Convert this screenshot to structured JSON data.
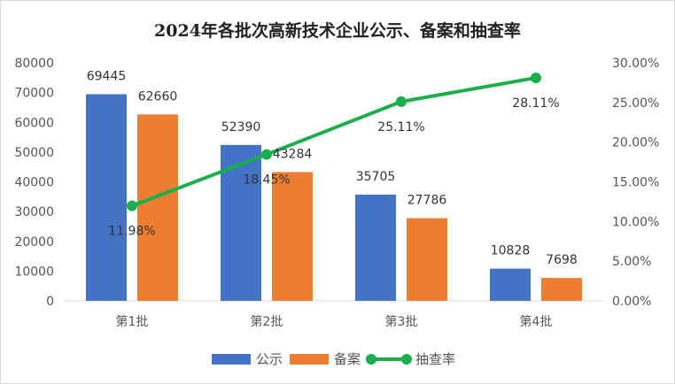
{
  "chart_data": {
    "type": "bar",
    "title": "2024年各批次高新技术企业公示、备案和抽查率",
    "categories": [
      "第1批",
      "第2批",
      "第3批",
      "第4批"
    ],
    "series": [
      {
        "name": "公示",
        "type": "bar",
        "axis": "left",
        "color": "#4472C4",
        "values": [
          69445,
          52390,
          35705,
          10828
        ],
        "labels": [
          "69445",
          "52390",
          "35705",
          "10828"
        ]
      },
      {
        "name": "备案",
        "type": "bar",
        "axis": "left",
        "color": "#ED7D31",
        "values": [
          62660,
          43284,
          27786,
          7698
        ],
        "labels": [
          "62660",
          "43284",
          "27786",
          "7698"
        ]
      },
      {
        "name": "抽查率",
        "type": "line",
        "axis": "right",
        "color": "#1AAF4B",
        "values": [
          11.98,
          18.45,
          25.11,
          28.11
        ],
        "labels": [
          "11.98%",
          "18.45%",
          "25.11%",
          "28.11%"
        ]
      }
    ],
    "y_left": {
      "min": 0,
      "max": 80000,
      "ticks": [
        "0",
        "10000",
        "20000",
        "30000",
        "40000",
        "50000",
        "60000",
        "70000",
        "80000"
      ]
    },
    "y_right": {
      "min": 0,
      "max": 30,
      "ticks": [
        "0.00%",
        "5.00%",
        "10.00%",
        "15.00%",
        "20.00%",
        "25.00%",
        "30.00%"
      ]
    },
    "legend_position": "bottom",
    "grid": false
  }
}
